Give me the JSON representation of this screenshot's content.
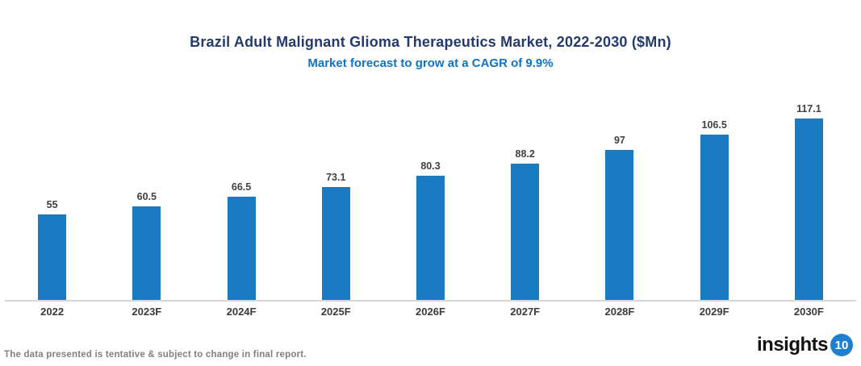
{
  "header": {
    "title": "Brazil Adult Malignant Glioma Therapeutics Market, 2022-2030 ($Mn)",
    "subtitle": "Market forecast to grow at a CAGR of 9.9%"
  },
  "chart_data": {
    "type": "bar",
    "title": "Brazil Adult Malignant Glioma Therapeutics Market, 2022-2030 ($Mn)",
    "subtitle": "Market forecast to grow at a CAGR of 9.9%",
    "categories": [
      "2022",
      "2023F",
      "2024F",
      "2025F",
      "2026F",
      "2027F",
      "2028F",
      "2029F",
      "2030F"
    ],
    "values": [
      55,
      60.5,
      66.5,
      73.1,
      80.3,
      88.2,
      97,
      106.5,
      117.1
    ],
    "xlabel": "",
    "ylabel": "",
    "ylim": [
      0,
      125
    ],
    "grid": false,
    "legend": false,
    "data_labels": true
  },
  "footer": {
    "disclaimer": "The data presented is tentative & subject to change in final report.",
    "logo_text": "insights",
    "logo_badge": "10"
  },
  "colors": {
    "title": "#243A6B",
    "subtitle": "#1072C4",
    "bar": "#1B7BC2",
    "axis": "#D8D8D8",
    "value_label": "#404040",
    "tick_label": "#3B3B3B",
    "footer_text": "#808080",
    "logo_badge_bg": "#1E7FD0"
  }
}
